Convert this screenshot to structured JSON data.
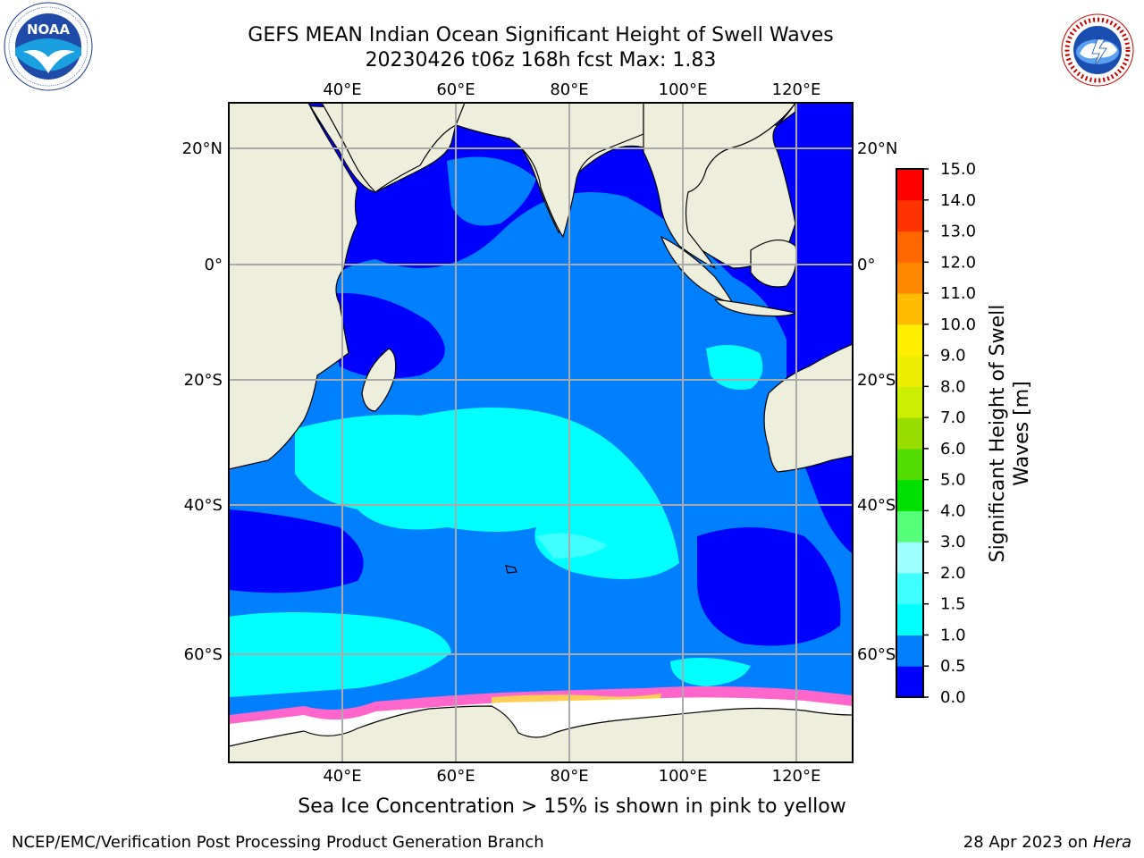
{
  "header": {
    "title_line1": "GEFS MEAN Indian Ocean Significant Height of Swell Waves",
    "title_line2": "20230426 t06z 168h fcst   Max: 1.83"
  },
  "map": {
    "lon_range": [
      20,
      130
    ],
    "lat_range": [
      -75,
      27
    ],
    "lon_ticks": [
      {
        "value": 40,
        "label": "40°E"
      },
      {
        "value": 60,
        "label": "60°E"
      },
      {
        "value": 80,
        "label": "80°E"
      },
      {
        "value": 100,
        "label": "100°E"
      },
      {
        "value": 120,
        "label": "120°E"
      }
    ],
    "lat_ticks": [
      {
        "value": 20,
        "label": "20°N"
      },
      {
        "value": 0,
        "label": "0°"
      },
      {
        "value": -20,
        "label": "20°S"
      },
      {
        "value": -40,
        "label": "40°S"
      },
      {
        "value": -60,
        "label": "60°S"
      }
    ],
    "land_color": "#eeeedd",
    "ice_color": "#ffffff"
  },
  "colorbar": {
    "label": "Significant Height of Swell Waves [m]",
    "label_line1": "Significant Height of Swell",
    "label_line2": "Waves [m]",
    "levels": [
      "0.0",
      "0.5",
      "1.0",
      "1.5",
      "2.0",
      "3.0",
      "4.0",
      "5.0",
      "6.0",
      "7.0",
      "8.0",
      "9.0",
      "10.0",
      "11.0",
      "12.0",
      "13.0",
      "14.0",
      "15.0"
    ],
    "colors": [
      "#0000ff",
      "#0080ff",
      "#00ffff",
      "#40ffff",
      "#a0ffff",
      "#55ff77",
      "#00e000",
      "#55dd00",
      "#99dd00",
      "#ccee00",
      "#eeee00",
      "#ffee00",
      "#ffbb00",
      "#ff8800",
      "#ff6600",
      "#ff3300",
      "#ff0000"
    ]
  },
  "footer": {
    "note": "Sea Ice Concentration > 15% is shown in pink to yellow",
    "credit_left": "NCEP/EMC/Verification Post Processing Product Generation Branch",
    "credit_right_date": "28 Apr 2023 on ",
    "credit_right_host": "Hera"
  },
  "icons": {
    "left_logo": "noaa-logo",
    "right_logo": "nws-logo"
  }
}
